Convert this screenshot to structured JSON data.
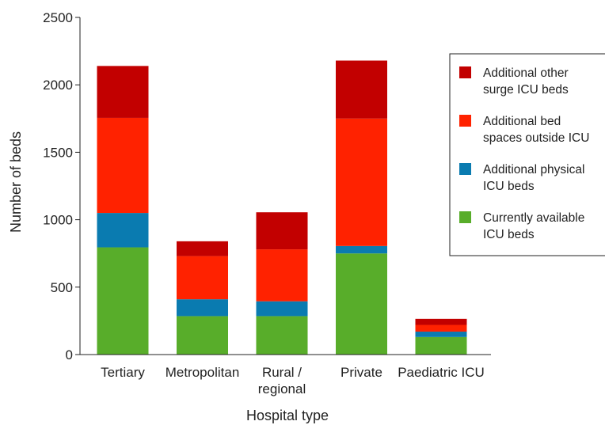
{
  "chart_data": {
    "type": "bar",
    "stacked": true,
    "title": "",
    "xlabel": "Hospital type",
    "ylabel": "Number of beds",
    "ylim": [
      0,
      2500
    ],
    "yticks": [
      "0",
      "500",
      "1000",
      "1500",
      "2000",
      "2500"
    ],
    "categories": [
      [
        "Tertiary"
      ],
      [
        "Metropolitan"
      ],
      [
        "Rural /",
        "regional"
      ],
      [
        "Private"
      ],
      [
        "Paediatric ICU"
      ]
    ],
    "series": [
      {
        "name": "Currently available ICU beds",
        "legend_lines": [
          "Currently available",
          "ICU beds"
        ],
        "color": "#58ad2a",
        "values": [
          795,
          285,
          285,
          750,
          130
        ]
      },
      {
        "name": "Additional physical ICU beds",
        "legend_lines": [
          "Additional physical",
          "ICU beds"
        ],
        "color": "#0a7bb0",
        "values": [
          255,
          125,
          110,
          55,
          40
        ]
      },
      {
        "name": "Additional bed spaces outside ICU",
        "legend_lines": [
          "Additional bed",
          "spaces outside ICU"
        ],
        "color": "#ff2200",
        "values": [
          705,
          320,
          385,
          945,
          50
        ]
      },
      {
        "name": "Additional other surge ICU beds",
        "legend_lines": [
          "Additional other",
          "surge ICU beds"
        ],
        "color": "#c20000",
        "values": [
          385,
          110,
          275,
          430,
          45
        ]
      }
    ],
    "legend_order": [
      3,
      2,
      1,
      0
    ],
    "legend_position": "right",
    "grid": false
  }
}
